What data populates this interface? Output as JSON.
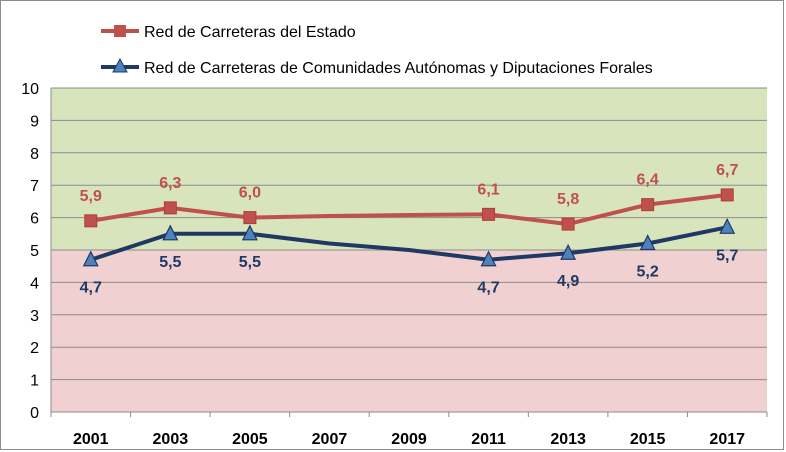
{
  "chart_data": {
    "type": "line",
    "title": "",
    "xlabel": "",
    "ylabel": "",
    "ylim": [
      0,
      10
    ],
    "yticks": [
      0,
      1,
      2,
      3,
      4,
      5,
      6,
      7,
      8,
      9,
      10
    ],
    "categories": [
      "2001",
      "2003",
      "2005",
      "2007",
      "2009",
      "2011",
      "2013",
      "2015",
      "2017"
    ],
    "grid": true,
    "legend_position": "top-left",
    "bands": [
      {
        "from": 5,
        "to": 10,
        "color": "#d8e4bc"
      },
      {
        "from": 0,
        "to": 5,
        "color": "#f0d0d0"
      }
    ],
    "series": [
      {
        "name": "Red de Carreteras del Estado",
        "color": "#c0504d",
        "marker": "square",
        "values": [
          5.9,
          6.3,
          6.0,
          6.05,
          6.08,
          6.1,
          5.8,
          6.4,
          6.7
        ],
        "labels": [
          "5,9",
          "6,3",
          "6,0",
          "",
          "",
          "6,1",
          "5,8",
          "6,4",
          "6,7"
        ],
        "markers": [
          true,
          true,
          true,
          false,
          false,
          true,
          true,
          true,
          true
        ]
      },
      {
        "name": "Red de Carreteras de Comunidades Autónomas y Diputaciones Forales",
        "color": "#1f3864",
        "marker_fill": "#4f81bd",
        "marker": "triangle",
        "values": [
          4.7,
          5.5,
          5.5,
          5.2,
          5.0,
          4.7,
          4.9,
          5.2,
          5.7
        ],
        "labels": [
          "4,7",
          "5,5",
          "5,5",
          "",
          "",
          "4,7",
          "4,9",
          "5,2",
          "5,7"
        ],
        "markers": [
          true,
          true,
          true,
          false,
          false,
          true,
          true,
          true,
          true
        ]
      }
    ]
  }
}
